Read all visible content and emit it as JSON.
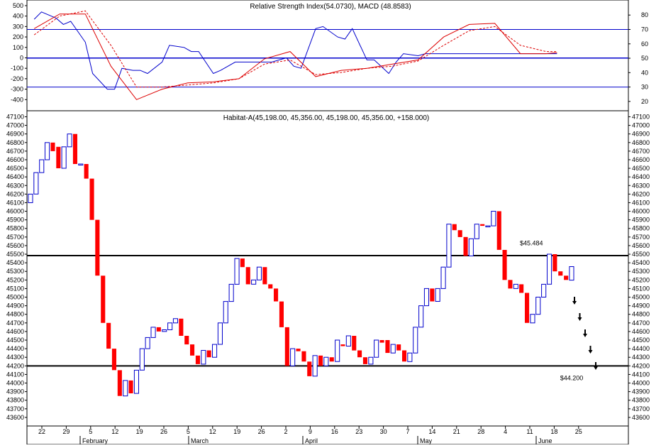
{
  "chart_data": [
    {
      "type": "line",
      "title": "Relative Strength Index(54.0730), MACD (48.8583)",
      "panel": "indicators",
      "left_axis": {
        "ticks": [
          500,
          400,
          300,
          200,
          100,
          0,
          -100,
          -200,
          -300,
          -400
        ],
        "tick_labels": [
          "500",
          "400",
          "300",
          "200",
          "100",
          "0",
          "-100",
          "-200",
          "-300",
          "-400"
        ],
        "ylim": [
          -500,
          520
        ]
      },
      "right_axis": {
        "ticks": [
          80,
          70,
          60,
          50,
          40,
          30,
          20
        ],
        "tick_labels": [
          "80",
          "70",
          "60",
          "50",
          "40",
          "30",
          "20"
        ],
        "ylim": [
          14,
          88
        ]
      },
      "reference_levels_right": [
        70,
        50,
        30
      ],
      "series": [
        {
          "color": "#0000cc",
          "style": "solid",
          "axis": "left",
          "x": [
            "2005-01-18",
            "2005-01-20",
            "2005-01-24",
            "2005-01-26",
            "2005-01-28",
            "2005-02-01",
            "2005-02-03",
            "2005-02-07",
            "2005-02-09",
            "2005-02-11",
            "2005-02-14",
            "2005-02-16",
            "2005-02-18",
            "2005-02-22",
            "2005-02-24",
            "2005-02-28",
            "2005-03-02",
            "2005-03-04",
            "2005-03-08",
            "2005-03-10",
            "2005-03-14",
            "2005-03-16",
            "2005-03-18",
            "2005-03-22",
            "2005-03-24",
            "2005-03-28",
            "2005-03-30",
            "2005-04-01",
            "2005-04-05",
            "2005-04-07",
            "2005-04-11",
            "2005-04-13",
            "2005-04-15",
            "2005-04-19",
            "2005-04-21",
            "2005-04-25",
            "2005-04-27",
            "2005-04-29",
            "2005-05-03",
            "2005-05-05",
            "2005-05-09",
            "2005-05-11",
            "2005-05-13",
            "2005-05-17",
            "2005-05-19",
            "2005-05-23",
            "2005-05-25",
            "2005-05-27",
            "2005-05-31",
            "2005-06-02",
            "2005-06-06",
            "2005-06-08",
            "2005-06-10"
          ],
          "values": [
            370,
            440,
            380,
            320,
            350,
            150,
            -150,
            -300,
            -300,
            -100,
            -120,
            -120,
            -150,
            -40,
            120,
            100,
            60,
            60,
            -150,
            -120,
            -40,
            -40,
            -40,
            -40,
            -40,
            0,
            -80,
            -100,
            280,
            300,
            200,
            180,
            280,
            -20,
            -20,
            -150,
            -40,
            40,
            20,
            40,
            40,
            40,
            40,
            40,
            40,
            40,
            40,
            40,
            40,
            40,
            40,
            40,
            40
          ]
        },
        {
          "color": "#dd0000",
          "style": "solid",
          "axis": "left",
          "x": [
            "2005-01-18",
            "2005-01-25",
            "2005-02-01",
            "2005-02-08",
            "2005-02-15",
            "2005-02-22",
            "2005-03-01",
            "2005-03-08",
            "2005-03-15",
            "2005-03-22",
            "2005-03-29",
            "2005-04-05",
            "2005-04-12",
            "2005-04-19",
            "2005-04-26",
            "2005-05-03",
            "2005-05-10",
            "2005-05-17",
            "2005-05-24",
            "2005-05-31",
            "2005-06-07",
            "2005-06-10"
          ],
          "values": [
            280,
            420,
            420,
            -80,
            -400,
            -300,
            -240,
            -230,
            -200,
            -10,
            60,
            -180,
            -120,
            -100,
            -60,
            -20,
            200,
            320,
            330,
            40,
            40,
            50
          ]
        },
        {
          "color": "#dd0000",
          "style": "dashed",
          "axis": "left",
          "x": [
            "2005-01-18",
            "2005-01-25",
            "2005-02-01",
            "2005-02-08",
            "2005-02-15",
            "2005-02-22",
            "2005-03-01",
            "2005-03-08",
            "2005-03-15",
            "2005-03-22",
            "2005-03-29",
            "2005-04-05",
            "2005-04-12",
            "2005-04-19",
            "2005-04-26",
            "2005-05-03",
            "2005-05-10",
            "2005-05-17",
            "2005-05-24",
            "2005-05-31",
            "2005-06-07",
            "2005-06-10"
          ],
          "values": [
            220,
            400,
            450,
            120,
            -280,
            -280,
            -260,
            -240,
            -200,
            -60,
            -20,
            -160,
            -140,
            -100,
            -80,
            -30,
            120,
            260,
            300,
            120,
            60,
            60
          ]
        }
      ]
    },
    {
      "type": "candlestick",
      "title": "Habitat-A(45,198.00, 45,356.00, 45,198.00, 45,356.00, +158.000)",
      "panel": "price",
      "y_ticks": [
        47100,
        47000,
        46900,
        46800,
        46700,
        46600,
        46500,
        46400,
        46300,
        46200,
        46100,
        46000,
        45900,
        45800,
        45700,
        45600,
        45500,
        45400,
        45300,
        45200,
        45100,
        45000,
        44900,
        44800,
        44700,
        44600,
        44500,
        44400,
        44300,
        44200,
        44100,
        44000,
        43900,
        43800,
        43700,
        43600
      ],
      "y_tick_labels": [
        "47100",
        "47000",
        "46900",
        "46800",
        "46700",
        "46600",
        "46500",
        "46400",
        "46300",
        "46200",
        "46100",
        "46000",
        "45900",
        "45800",
        "45700",
        "45600",
        "45500",
        "45400",
        "45300",
        "45200",
        "45100",
        "45000",
        "44900",
        "44800",
        "44700",
        "44600",
        "44500",
        "44400",
        "44300",
        "44200",
        "44100",
        "44000",
        "43900",
        "43800",
        "43700",
        "43600"
      ],
      "ylim": [
        43500,
        47170
      ],
      "up_color": "#0000cc",
      "down_color": "#ff0000",
      "horizontal_lines": [
        45484,
        44200
      ],
      "annotations": [
        {
          "text": "$45.484",
          "x": "2005-06-03",
          "y": 45630
        },
        {
          "text": "$44.200",
          "x": "2005-06-14",
          "y": 44060
        }
      ],
      "x_day_ticks": [
        "22",
        "29",
        "5",
        "12",
        "19",
        "26",
        "5",
        "12",
        "19",
        "26",
        "2",
        "9",
        "16",
        "23",
        "30",
        "7",
        "14",
        "21",
        "28",
        "4",
        "11",
        "18",
        "25"
      ],
      "x_month_labels": [
        "February",
        "March",
        "April",
        "May",
        "June"
      ],
      "candles": [
        {
          "open": 46100,
          "close": 46200
        },
        {
          "open": 46200,
          "close": 46450
        },
        {
          "open": 46450,
          "close": 46600
        },
        {
          "open": 46600,
          "close": 46800
        },
        {
          "open": 46800,
          "close": 46700
        },
        {
          "open": 46750,
          "close": 46500
        },
        {
          "open": 46500,
          "close": 46750
        },
        {
          "open": 46750,
          "close": 46900
        },
        {
          "open": 46900,
          "close": 46550
        },
        {
          "open": 46550,
          "close": 46550
        },
        {
          "open": 46550,
          "close": 46380
        },
        {
          "open": 46380,
          "close": 45900
        },
        {
          "open": 45900,
          "close": 45250
        },
        {
          "open": 45250,
          "close": 44700
        },
        {
          "open": 44700,
          "close": 44400
        },
        {
          "open": 44400,
          "close": 44150
        },
        {
          "open": 44150,
          "close": 43850
        },
        {
          "open": 43850,
          "close": 44030
        },
        {
          "open": 44030,
          "close": 43880
        },
        {
          "open": 43880,
          "close": 44150
        },
        {
          "open": 44150,
          "close": 44400
        },
        {
          "open": 44400,
          "close": 44530
        },
        {
          "open": 44530,
          "close": 44650
        },
        {
          "open": 44650,
          "close": 44600
        },
        {
          "open": 44600,
          "close": 44620
        },
        {
          "open": 44620,
          "close": 44700
        },
        {
          "open": 44700,
          "close": 44750
        },
        {
          "open": 44750,
          "close": 44550
        },
        {
          "open": 44550,
          "close": 44450
        },
        {
          "open": 44450,
          "close": 44320
        },
        {
          "open": 44320,
          "close": 44220
        },
        {
          "open": 44220,
          "close": 44380
        },
        {
          "open": 44380,
          "close": 44300
        },
        {
          "open": 44300,
          "close": 44450
        },
        {
          "open": 44450,
          "close": 44700
        },
        {
          "open": 44700,
          "close": 44950
        },
        {
          "open": 44950,
          "close": 45150
        },
        {
          "open": 45150,
          "close": 45450
        },
        {
          "open": 45450,
          "close": 45350
        },
        {
          "open": 45350,
          "close": 45150
        },
        {
          "open": 45150,
          "close": 45200
        },
        {
          "open": 45200,
          "close": 45350
        },
        {
          "open": 45350,
          "close": 45150
        },
        {
          "open": 45150,
          "close": 45100
        },
        {
          "open": 45100,
          "close": 44950
        },
        {
          "open": 44950,
          "close": 44650
        },
        {
          "open": 44650,
          "close": 44200
        },
        {
          "open": 44200,
          "close": 44400
        },
        {
          "open": 44400,
          "close": 44370
        },
        {
          "open": 44370,
          "close": 44250
        },
        {
          "open": 44250,
          "close": 44080
        },
        {
          "open": 44080,
          "close": 44320
        },
        {
          "open": 44320,
          "close": 44200
        },
        {
          "open": 44200,
          "close": 44300
        },
        {
          "open": 44300,
          "close": 44250
        },
        {
          "open": 44250,
          "close": 44500
        },
        {
          "open": 44450,
          "close": 44430
        },
        {
          "open": 44430,
          "close": 44550
        },
        {
          "open": 44550,
          "close": 44380
        },
        {
          "open": 44380,
          "close": 44300
        },
        {
          "open": 44300,
          "close": 44220
        },
        {
          "open": 44220,
          "close": 44300
        },
        {
          "open": 44300,
          "close": 44500
        },
        {
          "open": 44500,
          "close": 44470
        },
        {
          "open": 44500,
          "close": 44350
        },
        {
          "open": 44350,
          "close": 44450
        },
        {
          "open": 44450,
          "close": 44380
        },
        {
          "open": 44380,
          "close": 44250
        },
        {
          "open": 44250,
          "close": 44350
        },
        {
          "open": 44350,
          "close": 44650
        },
        {
          "open": 44650,
          "close": 44900
        },
        {
          "open": 44900,
          "close": 45100
        },
        {
          "open": 45100,
          "close": 44950
        },
        {
          "open": 44950,
          "close": 45100
        },
        {
          "open": 45100,
          "close": 45350
        },
        {
          "open": 45350,
          "close": 45850
        },
        {
          "open": 45850,
          "close": 45780
        },
        {
          "open": 45780,
          "close": 45700
        },
        {
          "open": 45700,
          "close": 45480
        },
        {
          "open": 45480,
          "close": 45680
        },
        {
          "open": 45680,
          "close": 45850
        },
        {
          "open": 45850,
          "close": 45830
        },
        {
          "open": 45830,
          "close": 45830
        },
        {
          "open": 45830,
          "close": 46000
        },
        {
          "open": 46000,
          "close": 45550
        },
        {
          "open": 45550,
          "close": 45200
        },
        {
          "open": 45200,
          "close": 45100
        },
        {
          "open": 45100,
          "close": 45150
        },
        {
          "open": 45150,
          "close": 45050
        },
        {
          "open": 45050,
          "close": 44700
        },
        {
          "open": 44700,
          "close": 44800
        },
        {
          "open": 44800,
          "close": 45000
        },
        {
          "open": 45000,
          "close": 45150
        },
        {
          "open": 45150,
          "close": 45500
        },
        {
          "open": 45500,
          "close": 45300
        },
        {
          "open": 45300,
          "close": 45250
        },
        {
          "open": 45250,
          "close": 45200
        },
        {
          "open": 45198,
          "close": 45356
        }
      ],
      "projection_arrows": 5
    }
  ]
}
